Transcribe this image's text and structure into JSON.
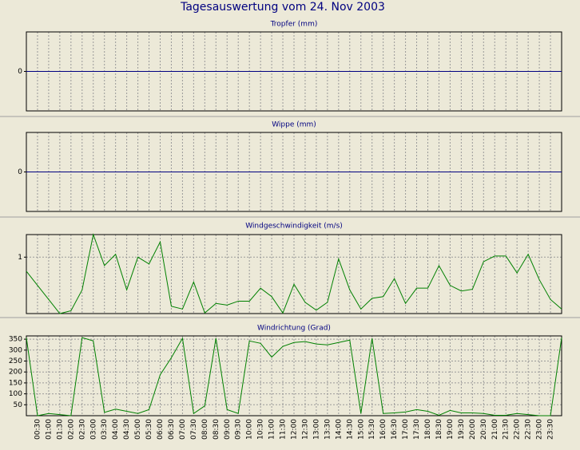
{
  "title": "Tagesauswertung vom 24. Nov 2003",
  "chart_data": [
    {
      "type": "line",
      "title": "Tropfer (mm)",
      "ylim": [
        -1,
        1
      ],
      "yticks": [
        0
      ],
      "grid": true,
      "series": [
        {
          "color": "#000080",
          "values": [
            0,
            0,
            0,
            0,
            0,
            0,
            0,
            0,
            0,
            0,
            0,
            0,
            0,
            0,
            0,
            0,
            0,
            0,
            0,
            0,
            0,
            0,
            0,
            0,
            0,
            0,
            0,
            0,
            0,
            0,
            0,
            0,
            0,
            0,
            0,
            0,
            0,
            0,
            0,
            0,
            0,
            0,
            0,
            0,
            0,
            0,
            0,
            0,
            0
          ]
        }
      ]
    },
    {
      "type": "line",
      "title": "Wippe (mm)",
      "ylim": [
        -1,
        1
      ],
      "yticks": [
        0
      ],
      "grid": true,
      "series": [
        {
          "color": "#000080",
          "values": [
            0,
            0,
            0,
            0,
            0,
            0,
            0,
            0,
            0,
            0,
            0,
            0,
            0,
            0,
            0,
            0,
            0,
            0,
            0,
            0,
            0,
            0,
            0,
            0,
            0,
            0,
            0,
            0,
            0,
            0,
            0,
            0,
            0,
            0,
            0,
            0,
            0,
            0,
            0,
            0,
            0,
            0,
            0,
            0,
            0,
            0,
            0,
            0,
            0
          ]
        }
      ]
    },
    {
      "type": "line",
      "title": "Windgeschwindigkeit (m/s)",
      "ylim": [
        0,
        1.4
      ],
      "yticks": [
        1
      ],
      "grid": true,
      "series": [
        {
          "color": "#008000",
          "values": [
            0.75,
            0.5,
            0.25,
            0,
            0.05,
            0.42,
            1.4,
            0.85,
            1.05,
            0.42,
            1.0,
            0.88,
            1.27,
            0.13,
            0.08,
            0.56,
            0.01,
            0.18,
            0.15,
            0.22,
            0.22,
            0.45,
            0.3,
            0.01,
            0.52,
            0.2,
            0.06,
            0.2,
            0.97,
            0.42,
            0.08,
            0.27,
            0.3,
            0.62,
            0.18,
            0.45,
            0.45,
            0.85,
            0.5,
            0.4,
            0.43,
            0.92,
            1.02,
            1.02,
            0.72,
            1.05,
            0.6,
            0.25,
            0.08
          ]
        }
      ]
    },
    {
      "type": "line",
      "title": "Windrichtung (Grad)",
      "ylim": [
        0,
        365
      ],
      "yticks": [
        50,
        100,
        150,
        200,
        250,
        300,
        350
      ],
      "grid": true,
      "categories": [
        null,
        "00:30",
        "01:00",
        "01:30",
        "02:00",
        "02:30",
        "03:00",
        "03:30",
        "04:00",
        "04:30",
        "05:00",
        "05:30",
        "06:00",
        "06:30",
        "07:00",
        "07:30",
        "08:00",
        "08:30",
        "09:00",
        "09:30",
        "10:00",
        "10:30",
        "11:00",
        "11:30",
        "12:00",
        "12:30",
        "13:00",
        "13:30",
        "14:00",
        "14:30",
        "15:00",
        "15:30",
        "16:00",
        "16:30",
        "17:00",
        "17:30",
        "18:00",
        "18:30",
        "19:00",
        "19:30",
        "20:00",
        "20:30",
        "21:00",
        "21:30",
        "22:00",
        "22:30",
        "23:00",
        "23:30",
        null
      ],
      "series": [
        {
          "color": "#008000",
          "values": [
            357,
            0,
            10,
            5,
            0,
            357,
            342,
            15,
            30,
            20,
            10,
            28,
            187,
            265,
            354,
            10,
            45,
            354,
            28,
            10,
            342,
            331,
            268,
            317,
            335,
            339,
            328,
            324,
            335,
            346,
            10,
            354,
            10,
            13,
            17,
            28,
            20,
            2,
            24,
            13,
            13,
            10,
            2,
            2,
            10,
            5,
            0,
            0,
            357
          ]
        }
      ]
    }
  ]
}
